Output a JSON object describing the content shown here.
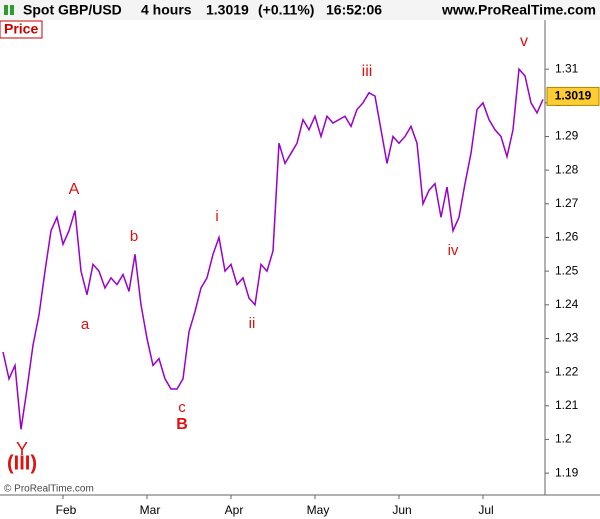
{
  "header": {
    "symbol": "Spot GBP/USD",
    "timeframe": "4 hours",
    "change": "(+0.11%)",
    "time": "16:52:06",
    "site": "www.ProRealTime.com"
  },
  "panel_label": "Price",
  "footer": "© ProRealTime.com",
  "chart_data": {
    "type": "line",
    "last_price": 1.3019,
    "categories": [
      null,
      null,
      null,
      null,
      null,
      null,
      null,
      null,
      null,
      null,
      "Feb",
      null,
      null,
      null,
      null,
      null,
      null,
      null,
      null,
      null,
      null,
      null,
      null,
      null,
      "Mar",
      null,
      null,
      null,
      null,
      null,
      null,
      null,
      null,
      null,
      null,
      null,
      null,
      null,
      "Apr",
      null,
      null,
      null,
      null,
      null,
      null,
      null,
      null,
      null,
      null,
      null,
      null,
      null,
      "May",
      null,
      null,
      null,
      null,
      null,
      null,
      null,
      null,
      null,
      null,
      null,
      null,
      null,
      "Jun",
      null,
      null,
      null,
      null,
      null,
      null,
      null,
      null,
      null,
      null,
      null,
      null,
      null,
      "Jul",
      null,
      null,
      null,
      null,
      null,
      null,
      null,
      null,
      null,
      null
    ],
    "series": [
      {
        "name": "Spot GBP/USD",
        "color": "#9900cc",
        "values": [
          1.226,
          1.218,
          1.222,
          1.203,
          1.215,
          1.228,
          1.237,
          1.25,
          1.262,
          1.266,
          1.258,
          1.262,
          1.268,
          1.25,
          1.243,
          1.252,
          1.25,
          1.245,
          1.248,
          1.246,
          1.249,
          1.244,
          1.255,
          1.24,
          1.23,
          1.222,
          1.224,
          1.218,
          1.215,
          1.215,
          1.218,
          1.232,
          1.238,
          1.245,
          1.248,
          1.255,
          1.26,
          1.25,
          1.252,
          1.246,
          1.248,
          1.242,
          1.24,
          1.252,
          1.25,
          1.256,
          1.288,
          1.282,
          1.285,
          1.288,
          1.295,
          1.292,
          1.296,
          1.29,
          1.296,
          1.294,
          1.295,
          1.296,
          1.293,
          1.298,
          1.3,
          1.303,
          1.302,
          1.292,
          1.282,
          1.29,
          1.288,
          1.29,
          1.293,
          1.288,
          1.27,
          1.274,
          1.276,
          1.266,
          1.275,
          1.262,
          1.266,
          1.276,
          1.285,
          1.298,
          1.3,
          1.295,
          1.292,
          1.29,
          1.284,
          1.292,
          1.31,
          1.308,
          1.3,
          1.297,
          1.301
        ]
      }
    ],
    "ylim": [
      1.1835,
      1.3246
    ],
    "yticks": [
      1.19,
      1.2,
      1.21,
      1.22,
      1.23,
      1.24,
      1.25,
      1.26,
      1.27,
      1.28,
      1.29,
      1.3,
      1.31
    ],
    "grid": false,
    "annotations": [
      "A",
      "a",
      "b",
      "c",
      "B",
      "i",
      "ii",
      "iii",
      "iv",
      "v",
      "Y",
      "(III)"
    ]
  }
}
